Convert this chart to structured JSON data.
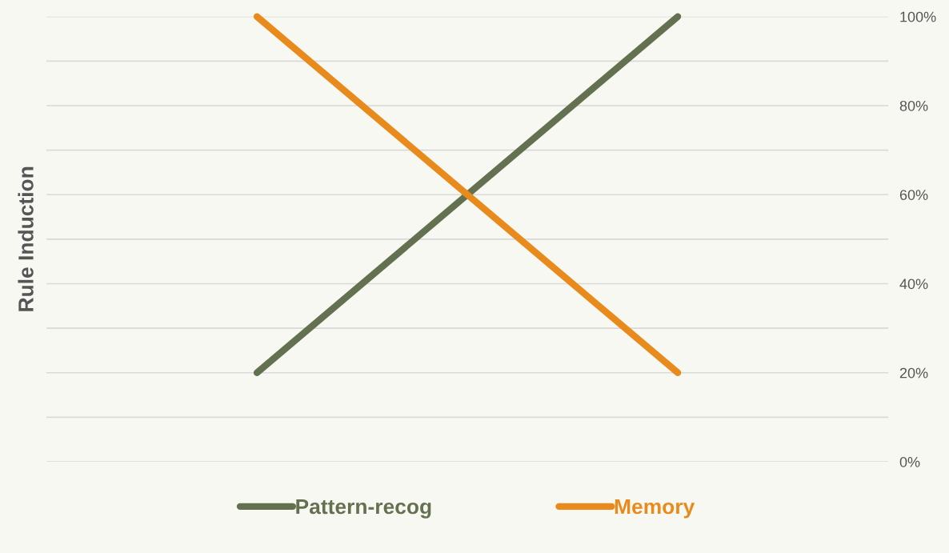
{
  "chart_data": {
    "type": "line",
    "ylabel": "Rule Induction",
    "categories": [
      null,
      null
    ],
    "series": [
      {
        "name": "Pattern-recog",
        "color": "#637150",
        "values": [
          20,
          100
        ]
      },
      {
        "name": "Memory",
        "color": "#e88a1c",
        "values": [
          100,
          20
        ]
      }
    ],
    "ylim": [
      0,
      100
    ],
    "yticks": [
      {
        "value": 0,
        "label": "0%"
      },
      {
        "value": 10,
        "label": null
      },
      {
        "value": 20,
        "label": "20%"
      },
      {
        "value": 30,
        "label": null
      },
      {
        "value": 40,
        "label": "40%"
      },
      {
        "value": 50,
        "label": null
      },
      {
        "value": 60,
        "label": "60%"
      },
      {
        "value": 70,
        "label": null
      },
      {
        "value": 80,
        "label": "80%"
      },
      {
        "value": 90,
        "label": null
      },
      {
        "value": 100,
        "label": "100%"
      }
    ],
    "grid": "y",
    "legend": "bottom",
    "marker": "none",
    "line_style": "solid"
  }
}
